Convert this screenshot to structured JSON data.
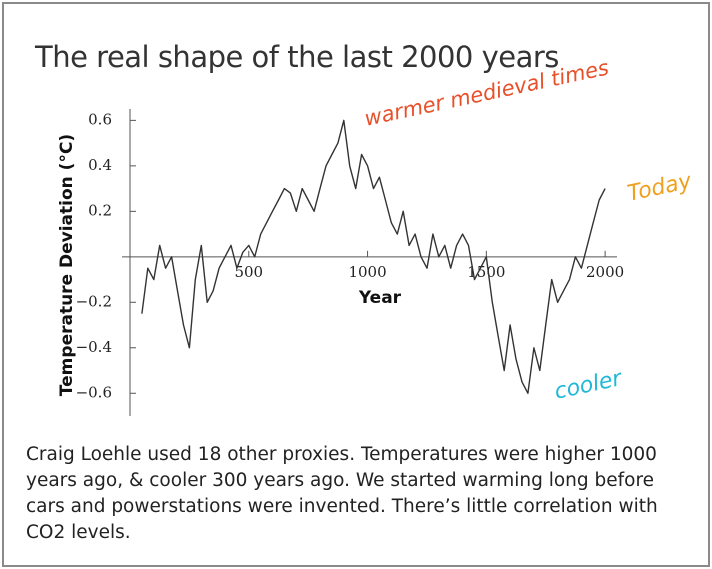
{
  "chart_data": {
    "type": "line",
    "title": "The real shape of the last 2000 years",
    "x_label": "Year",
    "y_label": "Temperature Deviation (°C)",
    "annotations": [
      "warmer medieval times",
      "Today",
      "cooler"
    ],
    "caption": "Craig Loehle used 18 other proxies. Temperatures were higher 1000 years ago, & cooler 300 years ago. We started warming long before cars and powerstations were invented. There’s little correlation with CO2 levels.",
    "color": "#333333",
    "xlim": [
      0,
      2050
    ],
    "ylim": [
      -0.7,
      0.65
    ],
    "xticks": [
      500,
      1000,
      1500,
      2000
    ],
    "yticks": [
      0.6,
      0.4,
      0.2,
      {
        "value": -0.2,
        "label": "−0.2"
      },
      {
        "value": -0.4,
        "label": "−0.4"
      },
      {
        "value": -0.6,
        "label": "−0.6"
      }
    ],
    "x": [
      50,
      75,
      100,
      125,
      150,
      175,
      200,
      225,
      250,
      275,
      300,
      325,
      350,
      375,
      400,
      425,
      450,
      475,
      500,
      525,
      550,
      575,
      600,
      625,
      650,
      675,
      700,
      725,
      750,
      775,
      800,
      825,
      850,
      875,
      900,
      925,
      950,
      975,
      1000,
      1025,
      1050,
      1075,
      1100,
      1125,
      1150,
      1175,
      1200,
      1225,
      1250,
      1275,
      1300,
      1325,
      1350,
      1375,
      1400,
      1425,
      1450,
      1475,
      1500,
      1525,
      1550,
      1575,
      1600,
      1625,
      1650,
      1675,
      1700,
      1725,
      1750,
      1775,
      1800,
      1825,
      1850,
      1875,
      1900,
      1925,
      1950,
      1975,
      2000
    ],
    "values": [
      -0.25,
      -0.05,
      -0.1,
      0.05,
      -0.05,
      0.0,
      -0.15,
      -0.3,
      -0.4,
      -0.1,
      0.05,
      -0.2,
      -0.15,
      -0.05,
      0.0,
      0.05,
      -0.05,
      0.02,
      0.05,
      0.0,
      0.1,
      0.15,
      0.2,
      0.25,
      0.3,
      0.28,
      0.2,
      0.3,
      0.25,
      0.2,
      0.3,
      0.4,
      0.45,
      0.5,
      0.6,
      0.4,
      0.3,
      0.45,
      0.4,
      0.3,
      0.35,
      0.25,
      0.15,
      0.1,
      0.2,
      0.05,
      0.1,
      0.0,
      -0.05,
      0.1,
      0.0,
      0.05,
      -0.05,
      0.05,
      0.1,
      0.05,
      -0.1,
      -0.05,
      0.0,
      -0.2,
      -0.35,
      -0.5,
      -0.3,
      -0.45,
      -0.55,
      -0.6,
      -0.4,
      -0.5,
      -0.3,
      -0.1,
      -0.2,
      -0.15,
      -0.1,
      0.0,
      -0.05,
      0.05,
      0.15,
      0.25,
      0.3
    ]
  }
}
